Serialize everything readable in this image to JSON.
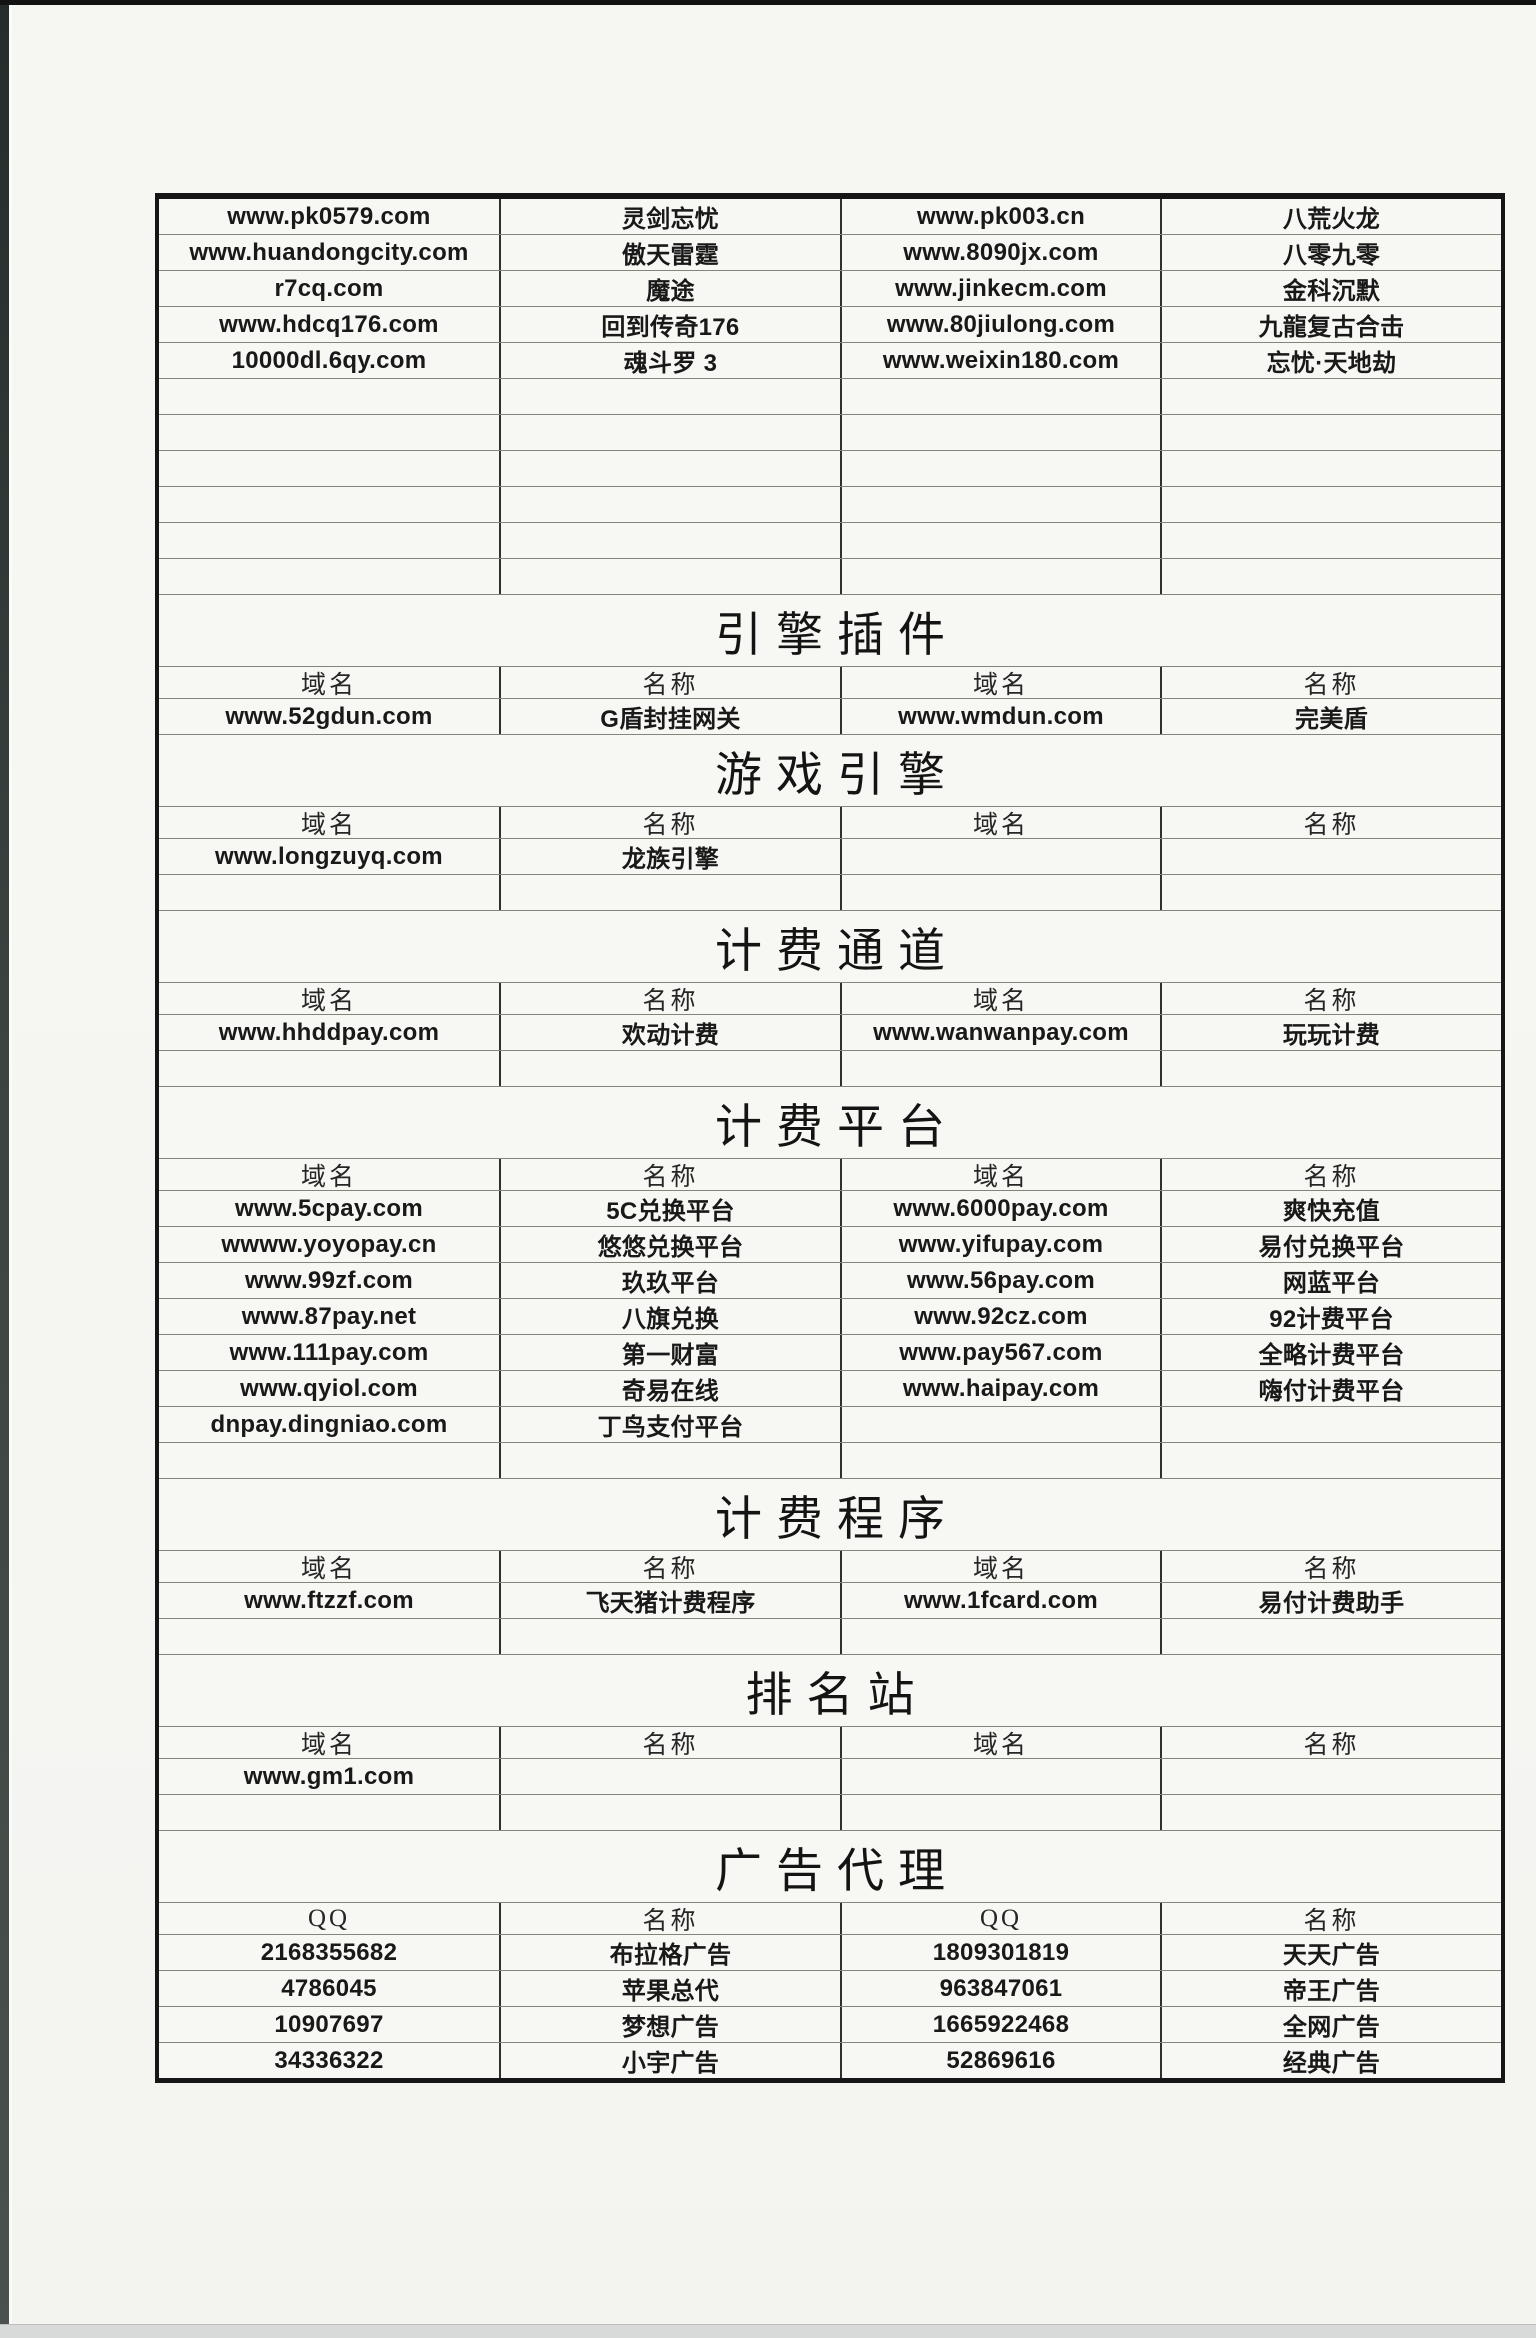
{
  "colors": {
    "paper": "#f5f5f2",
    "outer_border": "#161616",
    "h_line": "#85837b",
    "v_line": "#303030",
    "text": "#191919",
    "scanner_edge_left": "#3d4341",
    "scanner_edge_top": "#121212",
    "bottom_strip": "#d8dad9"
  },
  "table": {
    "continuation_rows": [
      [
        "www.pk0579.com",
        "灵剑忘忧",
        "www.pk003.cn",
        "八荒火龙"
      ],
      [
        "www.huandongcity.com",
        "傲天雷霆",
        "www.8090jx.com",
        "八零九零"
      ],
      [
        "r7cq.com",
        "魔途",
        "www.jinkecm.com",
        "金科沉默"
      ],
      [
        "www.hdcq176.com",
        "回到传奇176",
        "www.80jiulong.com",
        "九龍复古合击"
      ],
      [
        "10000dl.6qy.com",
        "魂斗罗 3",
        "www.weixin180.com",
        "忘忧·天地劫"
      ]
    ],
    "continuation_empty_rows": 6,
    "sections": [
      {
        "title": "引擎插件",
        "headers": [
          "域名",
          "名称",
          "域名",
          "名称"
        ],
        "rows": [
          [
            "www.52gdun.com",
            "G盾封挂网关",
            "www.wmdun.com",
            "完美盾"
          ]
        ],
        "empty_rows": 0
      },
      {
        "title": "游戏引擎",
        "headers": [
          "域名",
          "名称",
          "域名",
          "名称"
        ],
        "rows": [
          [
            "www.longzuyq.com",
            "龙族引擎",
            "",
            ""
          ]
        ],
        "empty_rows": 1
      },
      {
        "title": "计费通道",
        "headers": [
          "域名",
          "名称",
          "域名",
          "名称"
        ],
        "rows": [
          [
            "www.hhddpay.com",
            "欢动计费",
            "www.wanwanpay.com",
            "玩玩计费"
          ]
        ],
        "empty_rows": 1
      },
      {
        "title": "计费平台",
        "headers": [
          "域名",
          "名称",
          "域名",
          "名称"
        ],
        "rows": [
          [
            "www.5cpay.com",
            "5C兑换平台",
            "www.6000pay.com",
            "爽快充值"
          ],
          [
            "wwww.yoyopay.cn",
            "悠悠兑换平台",
            "www.yifupay.com",
            "易付兑换平台"
          ],
          [
            "www.99zf.com",
            "玖玖平台",
            "www.56pay.com",
            "网蓝平台"
          ],
          [
            "www.87pay.net",
            "八旗兑换",
            "www.92cz.com",
            "92计费平台"
          ],
          [
            "www.111pay.com",
            "第一财富",
            "www.pay567.com",
            "全略计费平台"
          ],
          [
            "www.qyiol.com",
            "奇易在线",
            "www.haipay.com",
            "嗨付计费平台"
          ],
          [
            "dnpay.dingniao.com",
            "丁鸟支付平台",
            "",
            ""
          ]
        ],
        "empty_rows": 1
      },
      {
        "title": "计费程序",
        "headers": [
          "域名",
          "名称",
          "域名",
          "名称"
        ],
        "rows": [
          [
            "www.ftzzf.com",
            "飞天猪计费程序",
            "www.1fcard.com",
            "易付计费助手"
          ]
        ],
        "empty_rows": 1
      },
      {
        "title": "排名站",
        "headers": [
          "域名",
          "名称",
          "域名",
          "名称"
        ],
        "rows": [
          [
            "www.gm1.com",
            "",
            "",
            ""
          ]
        ],
        "empty_rows": 1
      },
      {
        "title": "广告代理",
        "headers": [
          "QQ",
          "名称",
          "QQ",
          "名称"
        ],
        "rows": [
          [
            "2168355682",
            "布拉格广告",
            "1809301819",
            "天天广告"
          ],
          [
            "4786045",
            "苹果总代",
            "963847061",
            "帝王广告"
          ],
          [
            "10907697",
            "梦想广告",
            "1665922468",
            "全网广告"
          ],
          [
            "34336322",
            "小宇广告",
            "52869616",
            "经典广告"
          ]
        ],
        "empty_rows": 0
      }
    ]
  }
}
